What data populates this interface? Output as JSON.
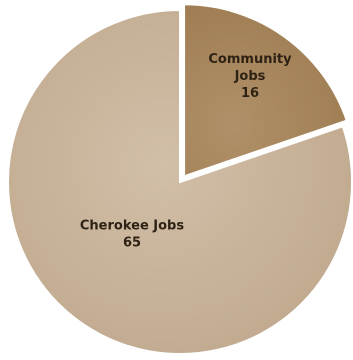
{
  "chart_data": {
    "type": "pie",
    "slices": [
      {
        "label": "Community Jobs",
        "label_lines": [
          "Community",
          "Jobs"
        ],
        "value": 16,
        "value_text": "16",
        "color": "#a8875e"
      },
      {
        "label": "Cherokee Jobs",
        "label_lines": [
          "Cherokee Jobs"
        ],
        "value": 65,
        "value_text": "65",
        "color": "#c9b49c"
      }
    ],
    "exploded_slice": "Community Jobs",
    "start_direction": "12 o'clock, clockwise",
    "title": "",
    "legend": "none"
  }
}
